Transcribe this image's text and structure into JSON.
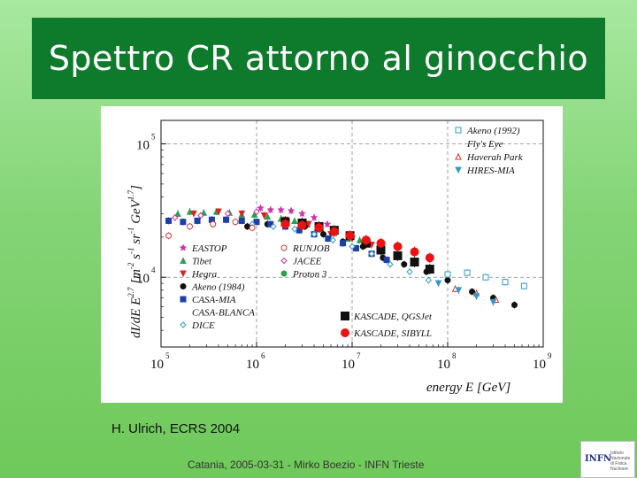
{
  "slide": {
    "title": "Spettro CR attorno al ginocchio",
    "credit": "H. Ulrich, ECRS 2004",
    "footer": "Catania, 2005-03-31 - Mirko Boezio - INFN Trieste",
    "logo_text": "INFN",
    "logo_subtext": "Istituto Nazionale di Fisica Nucleare"
  },
  "colors": {
    "background": "#84d476",
    "title_bar": "#0e7a2c",
    "title_text": "#ffffff"
  },
  "chart_data": {
    "type": "scatter",
    "xlabel": "energy E [GeV]",
    "ylabel_parts": [
      "dI/dE  E",
      "2.7",
      " [m",
      "-2",
      " s",
      "-1",
      " sr",
      "-1",
      " GeV",
      "1.7",
      "]"
    ],
    "x_scale": "log",
    "y_scale": "log",
    "xlim": [
      100000,
      1000000000
    ],
    "ylim": [
      3000,
      150000
    ],
    "x_ticks": [
      {
        "base": "10",
        "exp": "5",
        "value": 100000
      },
      {
        "base": "10",
        "exp": "6",
        "value": 1000000
      },
      {
        "base": "10",
        "exp": "7",
        "value": 10000000
      },
      {
        "base": "10",
        "exp": "8",
        "value": 100000000
      },
      {
        "base": "10",
        "exp": "9",
        "value": 1000000000
      }
    ],
    "y_ticks": [
      {
        "base": "10",
        "exp": "5",
        "value": 100000
      },
      {
        "base": "10",
        "exp": "4",
        "value": 10000
      }
    ],
    "grid": "dashed",
    "legend_left": [
      {
        "name": "EASTOP",
        "marker": "star",
        "color": "#cc33aa"
      },
      {
        "name": "Tibet",
        "marker": "triangle-up",
        "color": "#2aa052"
      },
      {
        "name": "Hegra",
        "marker": "triangle-down",
        "color": "#dd2222"
      },
      {
        "name": "Akeno (1984)",
        "marker": "circle",
        "color": "#111111"
      },
      {
        "name": "CASA-MIA",
        "marker": "square",
        "color": "#1d3fa8"
      },
      {
        "name": "CASA-BLANCA",
        "marker": "none",
        "color": "#111111"
      },
      {
        "name": "DICE",
        "marker": "diamond-open",
        "color": "#3399cc"
      }
    ],
    "legend_mid": [
      {
        "name": "RUNJOB",
        "marker": "circle-open",
        "color": "#cc3333"
      },
      {
        "name": "JACEE",
        "marker": "diamond-open",
        "color": "#cc33aa"
      },
      {
        "name": "Proton 3",
        "marker": "circle",
        "color": "#2aa052"
      }
    ],
    "legend_right": [
      {
        "name": "Akeno (1992)",
        "marker": "square-open",
        "color": "#3399cc"
      },
      {
        "name": "Fly's Eye",
        "marker": "none",
        "color": "#111111"
      },
      {
        "name": "Haverah Park",
        "marker": "triangle-up-open",
        "color": "#cc3333"
      },
      {
        "name": "HIRES-MIA",
        "marker": "triangle-down",
        "color": "#3399cc"
      }
    ],
    "legend_bottom": [
      {
        "name": "KASCADE, QGSJet",
        "marker": "square",
        "color": "#111111"
      },
      {
        "name": "KASCADE, SIBYLL",
        "marker": "circle",
        "color": "#ee1111"
      }
    ],
    "series": [
      {
        "name": "EASTOP",
        "marker": "star",
        "color": "#cc33aa",
        "points": [
          [
            1100000,
            33000
          ],
          [
            1400000,
            32000
          ],
          [
            1800000,
            32000
          ],
          [
            2300000,
            31500
          ],
          [
            3000000,
            30000
          ],
          [
            4000000,
            28000
          ],
          [
            5500000,
            25000
          ]
        ]
      },
      {
        "name": "Tibet",
        "marker": "triangle-up",
        "color": "#2aa052",
        "points": [
          [
            150000,
            30000
          ],
          [
            200000,
            31000
          ],
          [
            280000,
            30500
          ],
          [
            380000,
            31000
          ],
          [
            520000,
            30500
          ],
          [
            700000,
            29500
          ],
          [
            950000,
            29500
          ],
          [
            1300000,
            28500
          ],
          [
            1800000,
            27500
          ],
          [
            2500000,
            26500
          ],
          [
            3400000,
            25000
          ],
          [
            4600000,
            23000
          ],
          [
            6500000,
            21500
          ],
          [
            9000000,
            19500
          ],
          [
            12000000,
            19000
          ]
        ]
      },
      {
        "name": "Hegra",
        "marker": "triangle-down",
        "color": "#dd2222",
        "points": [
          [
            220000,
            30000
          ],
          [
            400000,
            31000
          ],
          [
            700000,
            30000
          ],
          [
            1200000,
            29000
          ],
          [
            2000000,
            27000
          ],
          [
            3500000,
            25000
          ],
          [
            6000000,
            21000
          ],
          [
            10000000,
            19500
          ],
          [
            16000000,
            17500
          ]
        ]
      },
      {
        "name": "Akeno (1984)",
        "marker": "circle",
        "color": "#111111",
        "points": [
          [
            800000,
            24000
          ],
          [
            1300000,
            25000
          ],
          [
            2000000,
            26000
          ],
          [
            3200000,
            24000
          ],
          [
            5000000,
            21000
          ],
          [
            8000000,
            18500
          ],
          [
            13000000,
            17000
          ],
          [
            21000000,
            14000
          ],
          [
            35000000,
            12500
          ],
          [
            60000000,
            11000
          ],
          [
            100000000,
            9500
          ],
          [
            180000000,
            7800
          ],
          [
            300000000,
            7000
          ],
          [
            500000000,
            6200
          ]
        ]
      },
      {
        "name": "CASA-MIA",
        "marker": "square",
        "color": "#1d3fa8",
        "points": [
          [
            120000,
            26500
          ],
          [
            170000,
            26000
          ],
          [
            240000,
            26500
          ],
          [
            340000,
            27000
          ],
          [
            480000,
            27000
          ],
          [
            700000,
            26500
          ],
          [
            1000000,
            26000
          ],
          [
            1400000,
            25000
          ],
          [
            2000000,
            24000
          ],
          [
            2800000,
            22500
          ],
          [
            4000000,
            21000
          ],
          [
            5600000,
            19500
          ],
          [
            8000000,
            18000
          ],
          [
            11000000,
            16500
          ],
          [
            16000000,
            15000
          ],
          [
            23000000,
            13500
          ]
        ]
      },
      {
        "name": "DICE",
        "marker": "diamond-open",
        "color": "#3399cc",
        "points": [
          [
            900000,
            25000
          ],
          [
            1500000,
            24000
          ],
          [
            2500000,
            23000
          ],
          [
            4000000,
            21000
          ],
          [
            6300000,
            19000
          ],
          [
            10000000,
            17000
          ],
          [
            16000000,
            15000
          ],
          [
            25000000,
            12500
          ],
          [
            40000000,
            11000
          ],
          [
            63000000,
            9500
          ]
        ]
      },
      {
        "name": "RUNJOB",
        "marker": "circle-open",
        "color": "#cc3333",
        "points": [
          [
            120000,
            20500
          ],
          [
            200000,
            24000
          ],
          [
            350000,
            25000
          ],
          [
            600000,
            26000
          ],
          [
            900000,
            23500
          ]
        ]
      },
      {
        "name": "JACEE",
        "marker": "diamond-open",
        "color": "#cc33aa",
        "points": [
          [
            140000,
            28000
          ],
          [
            260000,
            29000
          ],
          [
            500000,
            30000
          ],
          [
            1000000,
            31000
          ]
        ]
      },
      {
        "name": "Akeno (1992)",
        "marker": "square-open",
        "color": "#3399cc",
        "points": [
          [
            100000000,
            10500
          ],
          [
            160000000,
            10800
          ],
          [
            250000000,
            10000
          ],
          [
            400000000,
            9200
          ],
          [
            630000000,
            8600
          ]
        ]
      },
      {
        "name": "Haverah Park",
        "marker": "triangle-up-open",
        "color": "#cc3333",
        "points": [
          [
            120000000,
            8200
          ],
          [
            200000000,
            7600
          ],
          [
            320000000,
            6800
          ]
        ]
      },
      {
        "name": "HIRES-MIA",
        "marker": "triangle-down",
        "color": "#3399cc",
        "points": [
          [
            80000000,
            9000
          ],
          [
            130000000,
            8000
          ],
          [
            200000000,
            7200
          ],
          [
            300000000,
            6500
          ]
        ]
      },
      {
        "name": "KASCADE, QGSJet",
        "marker": "square",
        "color": "#111111",
        "points": [
          [
            2000000,
            26000
          ],
          [
            3000000,
            25500
          ],
          [
            4500000,
            24000
          ],
          [
            6500000,
            22500
          ],
          [
            9500000,
            20500
          ],
          [
            14000000,
            18000
          ],
          [
            20000000,
            16000
          ],
          [
            30000000,
            14500
          ],
          [
            45000000,
            13000
          ],
          [
            65000000,
            11500
          ]
        ]
      },
      {
        "name": "KASCADE, SIBYLL",
        "marker": "circle",
        "color": "#ee1111",
        "points": [
          [
            2000000,
            25000
          ],
          [
            3000000,
            24500
          ],
          [
            4500000,
            23500
          ],
          [
            6500000,
            22000
          ],
          [
            9500000,
            20500
          ],
          [
            14000000,
            19000
          ],
          [
            20000000,
            18000
          ],
          [
            30000000,
            17000
          ],
          [
            45000000,
            15500
          ],
          [
            65000000,
            14000
          ]
        ]
      }
    ]
  }
}
